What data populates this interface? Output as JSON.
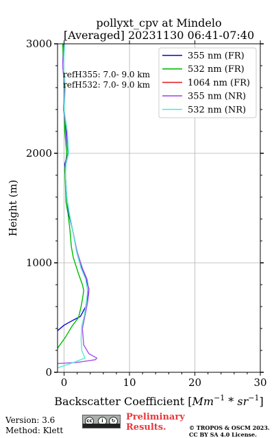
{
  "chart_data": {
    "type": "line",
    "title": "pollyxt_cpv at Mindelo",
    "subtitle": "[Averaged] 20231130 06:41-07:40",
    "xlabel": "Backscatter Coefficient [",
    "xlabel_unit": "Mm",
    "xlabel_exp1": "−1",
    "xlabel_mid": " * ",
    "xlabel_unit2": "sr",
    "xlabel_exp2": "−1",
    "xlabel_close": "]",
    "ylabel": "Height (m)",
    "xlim": [
      -1,
      30
    ],
    "ylim": [
      0,
      3000
    ],
    "xticks": [
      "0",
      "10",
      "20",
      "30"
    ],
    "yticks": [
      "0",
      "1000",
      "2000",
      "3000"
    ],
    "grid": true,
    "legend_position": "top-right",
    "annotations": [
      "refH355:  7.0- 9.0 km",
      "refH532:  7.0- 9.0 km"
    ],
    "series": [
      {
        "name": "355 nm (FR)",
        "color": "#0000dd",
        "points": [
          [
            -1,
            380
          ],
          [
            0,
            430
          ],
          [
            1.5,
            480
          ],
          [
            2.5,
            510
          ],
          [
            3.3,
            600
          ],
          [
            3.6,
            700
          ],
          [
            3.8,
            760
          ],
          [
            3.6,
            800
          ],
          [
            3.1,
            900
          ],
          [
            2.4,
            1000
          ],
          [
            1.8,
            1150
          ],
          [
            1.3,
            1300
          ],
          [
            0.7,
            1450
          ],
          [
            0.4,
            1600
          ],
          [
            0.2,
            1800
          ],
          [
            0.1,
            1900
          ],
          [
            0.6,
            2000
          ],
          [
            0.3,
            2200
          ],
          [
            0,
            2400
          ],
          [
            0.1,
            2600
          ],
          [
            -0.2,
            2800
          ],
          [
            -0.1,
            3000
          ]
        ]
      },
      {
        "name": "532 nm (FR)",
        "color": "#00bb00",
        "points": [
          [
            -1,
            220
          ],
          [
            0.2,
            320
          ],
          [
            1.2,
            420
          ],
          [
            2.2,
            500
          ],
          [
            2.6,
            600
          ],
          [
            2.9,
            700
          ],
          [
            3.0,
            750
          ],
          [
            2.8,
            800
          ],
          [
            2.2,
            900
          ],
          [
            1.4,
            1050
          ],
          [
            1.1,
            1150
          ],
          [
            0.9,
            1300
          ],
          [
            0.6,
            1450
          ],
          [
            0.3,
            1550
          ],
          [
            0.2,
            1700
          ],
          [
            0.1,
            1850
          ],
          [
            0.4,
            2000
          ],
          [
            0.1,
            2200
          ],
          [
            0,
            2400
          ],
          [
            0,
            2600
          ],
          [
            -0.1,
            2800
          ],
          [
            -0.2,
            3000
          ]
        ]
      },
      {
        "name": "1064 nm (FR)",
        "color": "#dd2222",
        "points": []
      },
      {
        "name": "355 nm (NR)",
        "color": "#a64cf0",
        "points": [
          [
            -1,
            80
          ],
          [
            2,
            90
          ],
          [
            4.8,
            115
          ],
          [
            5.0,
            130
          ],
          [
            3.8,
            170
          ],
          [
            3.0,
            250
          ],
          [
            2.8,
            400
          ],
          [
            3.2,
            520
          ],
          [
            3.6,
            640
          ],
          [
            3.8,
            740
          ],
          [
            3.5,
            850
          ],
          [
            2.8,
            950
          ],
          [
            2.0,
            1100
          ],
          [
            1.3,
            1300
          ],
          [
            0.8,
            1450
          ],
          [
            0.4,
            1600
          ],
          [
            0.2,
            1800
          ],
          [
            0.2,
            1900
          ],
          [
            0.6,
            2000
          ],
          [
            0.4,
            2200
          ],
          [
            -0.1,
            2400
          ],
          [
            0.1,
            2600
          ],
          [
            -0.2,
            2800
          ],
          [
            0,
            3000
          ]
        ]
      },
      {
        "name": "532 nm (NR)",
        "color": "#55eecc",
        "points": [
          [
            -1,
            40
          ],
          [
            1,
            80
          ],
          [
            3.2,
            130
          ],
          [
            2.7,
            200
          ],
          [
            2.6,
            300
          ],
          [
            2.7,
            420
          ],
          [
            3.1,
            520
          ],
          [
            3.4,
            640
          ],
          [
            3.6,
            740
          ],
          [
            3.3,
            850
          ],
          [
            2.6,
            950
          ],
          [
            1.9,
            1100
          ],
          [
            1.3,
            1300
          ],
          [
            0.8,
            1450
          ],
          [
            0.4,
            1600
          ],
          [
            0.2,
            1800
          ],
          [
            0.3,
            1900
          ],
          [
            0.7,
            2000
          ],
          [
            0.5,
            2200
          ],
          [
            0,
            2400
          ],
          [
            0.2,
            2600
          ],
          [
            -0.1,
            2800
          ],
          [
            0.1,
            3000
          ]
        ]
      }
    ]
  },
  "footer": {
    "version": "Version: 3.6",
    "method": "Method: Klett",
    "prelim_line1": "Preliminary",
    "prelim_line2": "Results.",
    "copyright_line1": "© TROPOS & OSCM 2023.",
    "copyright_line2": "CC BY SA 4.0 License.",
    "license_badge": "cc by sa",
    "license_icon": "creative-commons-icon"
  }
}
